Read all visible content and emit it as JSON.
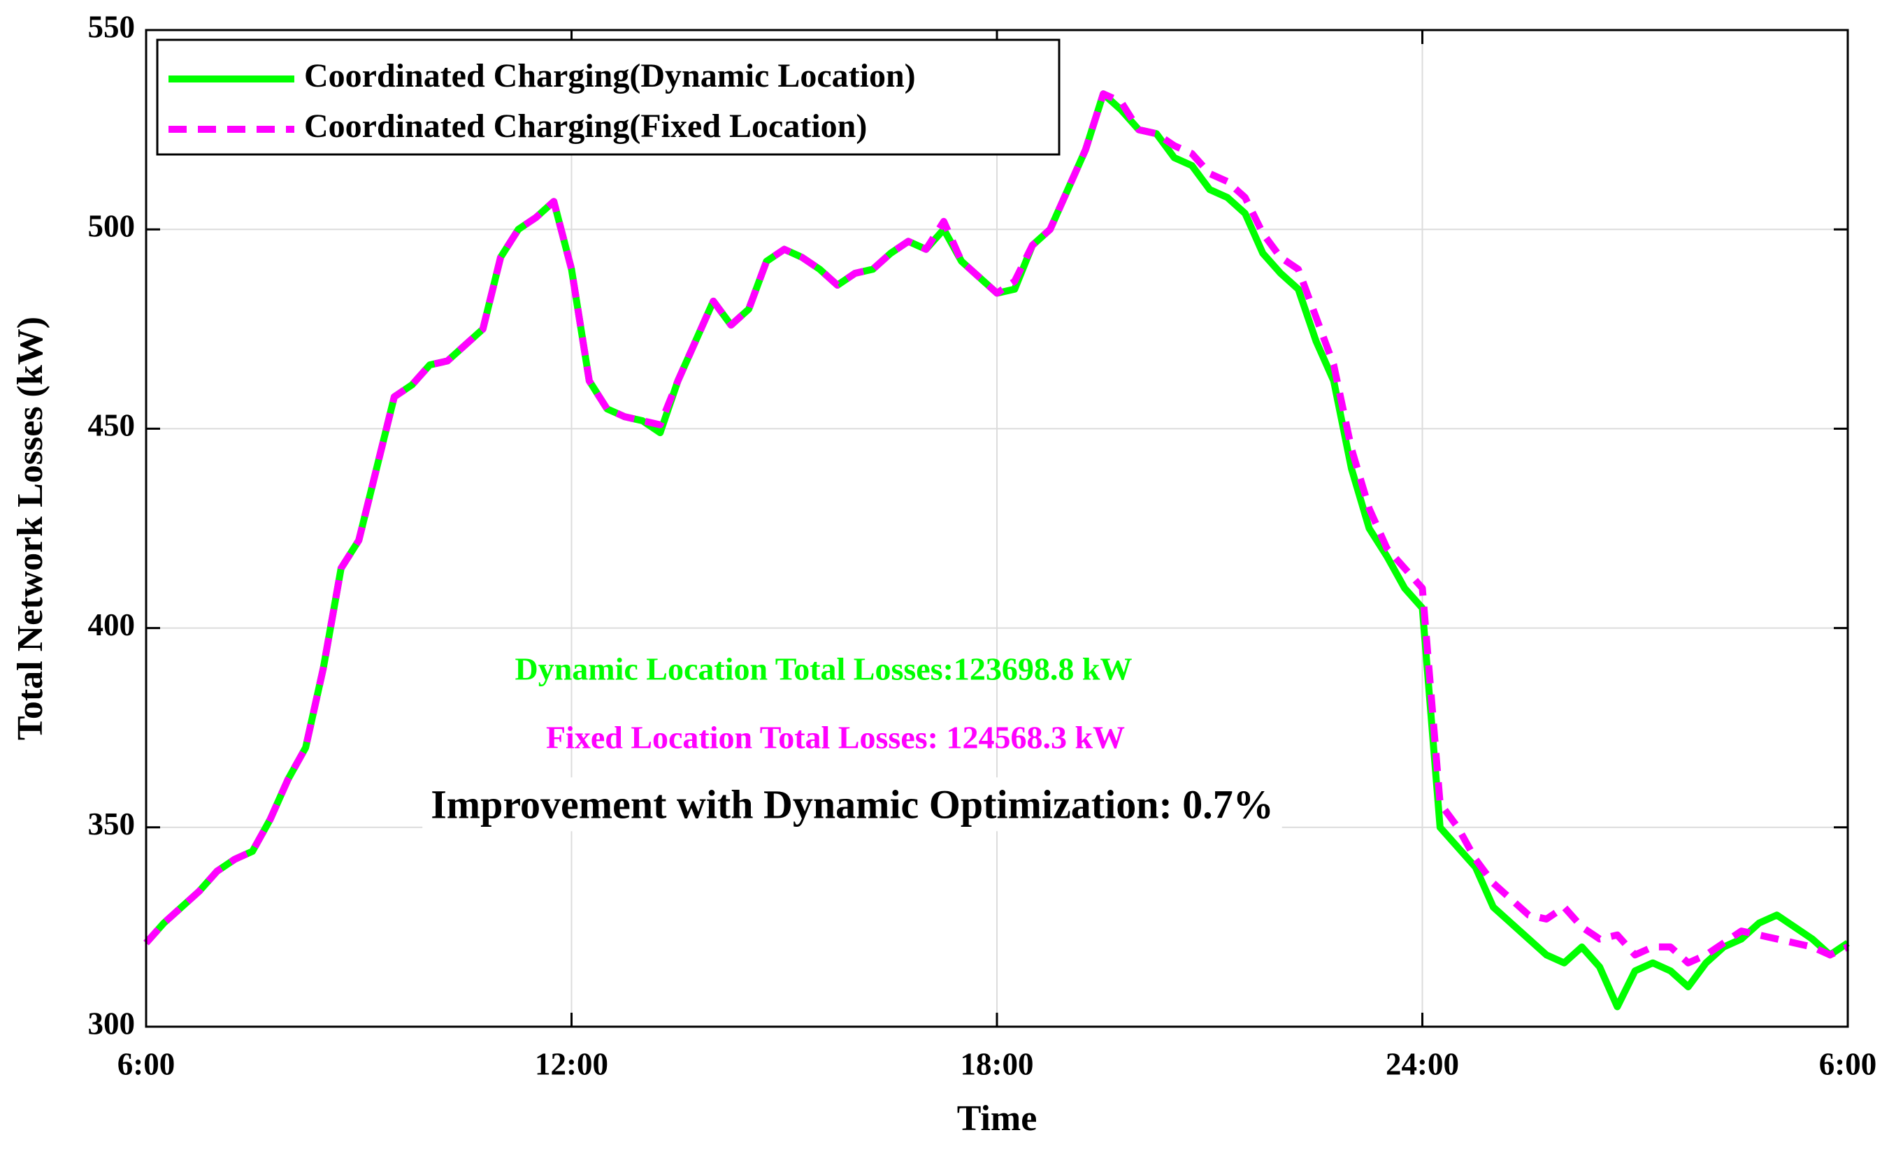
{
  "chart_data": {
    "type": "line",
    "xlabel": "Time",
    "ylabel": "Total Network Losses (kW)",
    "x": [
      6,
      6.25,
      6.5,
      6.75,
      7,
      7.25,
      7.5,
      7.75,
      8,
      8.25,
      8.5,
      8.75,
      9,
      9.25,
      9.5,
      9.75,
      10,
      10.25,
      10.5,
      10.75,
      11,
      11.25,
      11.5,
      11.75,
      12,
      12.25,
      12.5,
      12.75,
      13,
      13.25,
      13.5,
      13.75,
      14,
      14.25,
      14.5,
      14.75,
      15,
      15.25,
      15.5,
      15.75,
      16,
      16.25,
      16.5,
      16.75,
      17,
      17.25,
      17.5,
      17.75,
      18,
      18.25,
      18.5,
      18.75,
      19,
      19.25,
      19.5,
      19.75,
      20,
      20.25,
      20.5,
      20.75,
      21,
      21.25,
      21.5,
      21.75,
      22,
      22.25,
      22.5,
      22.75,
      23,
      23.25,
      23.5,
      23.75,
      24,
      24.25,
      24.5,
      24.75,
      25,
      25.25,
      25.5,
      25.75,
      26,
      26.25,
      26.5,
      26.75,
      27,
      27.25,
      27.5,
      27.75,
      28,
      28.25,
      28.5,
      28.75,
      29,
      29.25,
      29.5,
      29.75,
      30
    ],
    "series": [
      {
        "name": "Coordinated Charging(Dynamic Location)",
        "color": "#00ff00",
        "linestyle": "solid",
        "values": [
          321,
          326,
          330,
          334,
          339,
          342,
          344,
          352,
          362,
          370,
          390,
          415,
          422,
          440,
          458,
          461,
          466,
          467,
          471,
          475,
          493,
          500,
          503,
          507,
          490,
          462,
          455,
          453,
          452,
          449,
          462,
          472,
          482,
          476,
          480,
          492,
          495,
          493,
          490,
          486,
          489,
          490,
          494,
          497,
          495,
          500,
          492,
          488,
          484,
          485,
          496,
          500,
          510,
          520,
          534,
          530,
          525,
          524,
          518,
          516,
          510,
          508,
          504,
          494,
          489,
          485,
          472,
          462,
          440,
          425,
          418,
          410,
          405,
          350,
          345,
          340,
          330,
          326,
          322,
          318,
          316,
          320,
          315,
          305,
          314,
          316,
          314,
          310,
          316,
          320,
          322,
          326,
          328,
          325,
          322,
          318,
          321
        ]
      },
      {
        "name": "Coordinated Charging(Fixed Location)",
        "color": "#ff00ff",
        "linestyle": "dashed",
        "values": [
          321,
          326,
          330,
          334,
          339,
          342,
          344,
          352,
          362,
          370,
          390,
          415,
          422,
          440,
          458,
          461,
          466,
          467,
          471,
          475,
          493,
          500,
          503,
          507,
          490,
          462,
          455,
          453,
          452,
          451,
          462,
          472,
          482,
          476,
          480,
          492,
          495,
          493,
          490,
          486,
          489,
          490,
          494,
          497,
          495,
          502,
          492,
          488,
          484,
          487,
          496,
          500,
          510,
          520,
          534,
          532,
          525,
          524,
          521,
          519,
          514,
          512,
          508,
          499,
          493,
          490,
          478,
          466,
          445,
          430,
          420,
          415,
          410,
          356,
          350,
          342,
          336,
          332,
          328,
          327,
          330,
          325,
          322,
          323,
          318,
          320,
          320,
          316,
          318,
          321,
          324,
          323,
          322,
          321,
          320,
          318,
          320
        ]
      }
    ],
    "xlim": [
      6,
      30
    ],
    "xticks": [
      {
        "value": 6,
        "label": "6:00"
      },
      {
        "value": 12,
        "label": "12:00"
      },
      {
        "value": 18,
        "label": "18:00"
      },
      {
        "value": 24,
        "label": "24:00"
      },
      {
        "value": 30,
        "label": "6:00"
      }
    ],
    "ylim": [
      300,
      550
    ],
    "yticks": [
      300,
      350,
      400,
      450,
      500,
      550
    ],
    "grid": true,
    "legend": "upper left",
    "annotations": [
      {
        "text": "Dynamic Location Total Losses:123698.8 kW",
        "color": "#00ff00"
      },
      {
        "text": "Fixed Location Total Losses: 124568.3 kW",
        "color": "#ff00ff"
      },
      {
        "text": "Improvement with Dynamic Optimization: 0.7%",
        "color": "#000000"
      }
    ]
  }
}
